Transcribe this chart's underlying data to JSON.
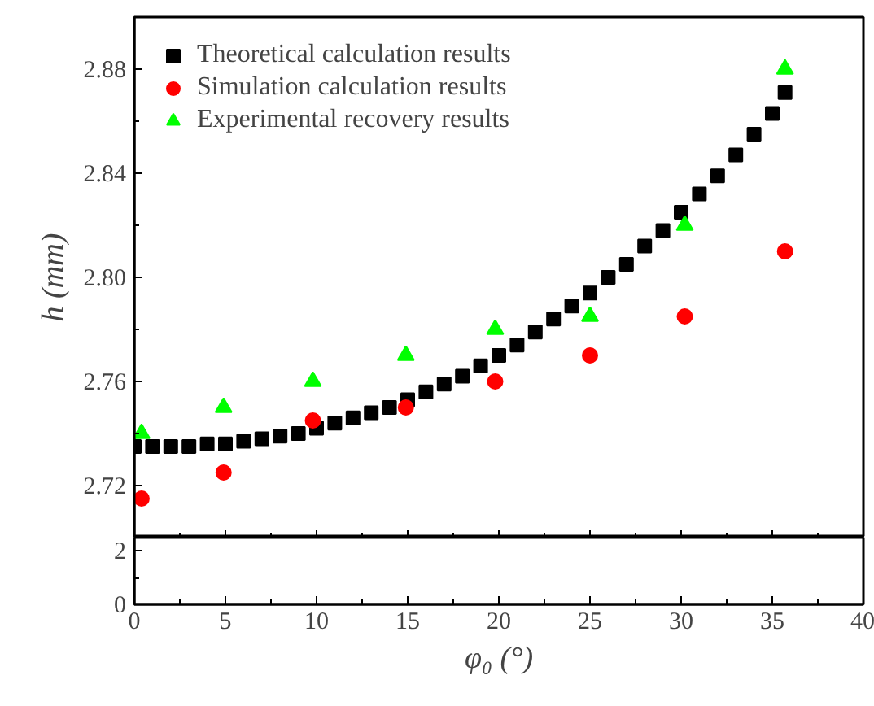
{
  "chart_data": [
    {
      "type": "scatter",
      "ylabel": "h (mm)",
      "xlim": [
        0,
        40
      ],
      "xticks": [
        0,
        5,
        10,
        15,
        20,
        25,
        30,
        35,
        40
      ],
      "ylim": [
        2.7,
        2.9
      ],
      "yticks": [
        2.72,
        2.76,
        {
          "value": 2.8,
          "label": "2.80"
        },
        2.84,
        2.88
      ],
      "tick_labels": "y",
      "legend": "top left",
      "grid": false,
      "series": [
        {
          "name": "Theoretical calculation results",
          "color": "#000000",
          "marker": "square",
          "x": [
            0,
            1,
            2,
            3,
            4,
            5,
            6,
            7,
            8,
            9,
            10,
            11,
            12,
            13,
            14,
            15,
            16,
            17,
            18,
            19,
            20,
            21,
            22,
            23,
            24,
            25,
            26,
            27,
            28,
            29,
            30,
            31,
            32,
            33,
            34,
            35,
            35.7
          ],
          "values": [
            2.735,
            2.735,
            2.735,
            2.735,
            2.736,
            2.736,
            2.737,
            2.738,
            2.739,
            2.74,
            2.742,
            2.744,
            2.746,
            2.748,
            2.75,
            2.753,
            2.756,
            2.759,
            2.762,
            2.766,
            2.77,
            2.774,
            2.779,
            2.784,
            2.789,
            2.794,
            2.8,
            2.805,
            2.812,
            2.818,
            2.825,
            2.832,
            2.839,
            2.847,
            2.855,
            2.863,
            2.871
          ]
        },
        {
          "name": "Simulation calculation results",
          "color": "#ff0000",
          "marker": "circle",
          "x": [
            0.4,
            4.9,
            9.8,
            14.9,
            19.8,
            25,
            30.2,
            35.7
          ],
          "values": [
            2.715,
            2.725,
            2.745,
            2.75,
            2.76,
            2.77,
            2.785,
            2.81
          ]
        },
        {
          "name": "Experimental recovery results",
          "color": "#00ff00",
          "marker": "triangle",
          "x": [
            0.4,
            4.9,
            9.8,
            14.9,
            19.8,
            25,
            30.2,
            35.7
          ],
          "values": [
            2.74,
            2.75,
            2.76,
            2.77,
            2.78,
            2.785,
            2.82,
            2.88
          ]
        }
      ]
    },
    {
      "type": "scatter",
      "xlabel": "φ₀ (°)",
      "xlim": [
        0,
        40
      ],
      "xticks": [
        0,
        5,
        10,
        15,
        20,
        25,
        30,
        35,
        40
      ],
      "ylim": [
        0,
        2.5
      ],
      "yticks": [
        0,
        2
      ],
      "grid": false
    }
  ]
}
